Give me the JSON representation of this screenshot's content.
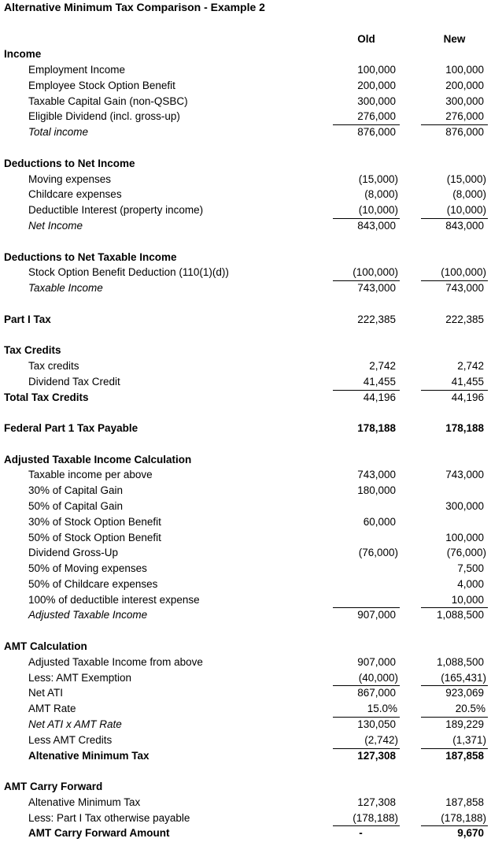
{
  "title": "Alternative Minimum Tax Comparison - Example 2",
  "columns": {
    "old": "Old",
    "new": "New"
  },
  "rows": [
    {
      "label": "Income",
      "indent": 0,
      "bold": true,
      "old": "",
      "new": ""
    },
    {
      "label": "Employment Income",
      "indent": 1,
      "old": "100,000",
      "new": "100,000"
    },
    {
      "label": "Employee Stock Option Benefit",
      "indent": 1,
      "old": "200,000",
      "new": "200,000"
    },
    {
      "label": "Taxable Capital Gain (non-QSBC)",
      "indent": 1,
      "old": "300,000",
      "new": "300,000"
    },
    {
      "label": "Eligible Dividend (incl. gross-up)",
      "indent": 1,
      "old": "276,000",
      "new": "276,000",
      "underline": true
    },
    {
      "label": "Total income",
      "indent": 1,
      "italic": true,
      "old": "876,000",
      "new": "876,000"
    },
    {
      "blank": true
    },
    {
      "label": "Deductions to Net Income",
      "indent": 0,
      "bold": true,
      "old": "",
      "new": ""
    },
    {
      "label": "Moving expenses",
      "indent": 1,
      "old": "(15,000)",
      "new": "(15,000)"
    },
    {
      "label": "Childcare expenses",
      "indent": 1,
      "old": "(8,000)",
      "new": "(8,000)"
    },
    {
      "label": "Deductible Interest (property income)",
      "indent": 1,
      "old": "(10,000)",
      "new": "(10,000)",
      "underline": true
    },
    {
      "label": "Net Income",
      "indent": 1,
      "italic": true,
      "old": "843,000",
      "new": "843,000"
    },
    {
      "blank": true
    },
    {
      "label": "Deductions to Net Taxable Income",
      "indent": 0,
      "bold": true,
      "old": "",
      "new": ""
    },
    {
      "label": "Stock Option Benefit Deduction (110(1)(d))",
      "indent": 1,
      "old": "(100,000)",
      "new": "(100,000)",
      "underline": true
    },
    {
      "label": "Taxable Income",
      "indent": 1,
      "italic": true,
      "old": "743,000",
      "new": "743,000"
    },
    {
      "blank": true
    },
    {
      "label": "Part I Tax",
      "indent": 0,
      "bold": true,
      "old": "222,385",
      "new": "222,385"
    },
    {
      "blank": true
    },
    {
      "label": "Tax Credits",
      "indent": 0,
      "bold": true,
      "old": "",
      "new": ""
    },
    {
      "label": "Tax credits",
      "indent": 1,
      "old": "2,742",
      "new": "2,742"
    },
    {
      "label": "Dividend Tax Credit",
      "indent": 1,
      "old": "41,455",
      "new": "41,455",
      "underline": true
    },
    {
      "label": "Total Tax Credits",
      "indent": 0,
      "bold": true,
      "old": "44,196",
      "new": "44,196"
    },
    {
      "blank": true
    },
    {
      "label": "Federal Part 1 Tax Payable",
      "indent": 0,
      "bold": true,
      "old": "178,188",
      "new": "178,188",
      "values_bold": true
    },
    {
      "blank": true
    },
    {
      "label": "Adjusted Taxable Income Calculation",
      "indent": 0,
      "bold": true,
      "old": "",
      "new": ""
    },
    {
      "label": "Taxable income per above",
      "indent": 1,
      "old": "743,000",
      "new": "743,000"
    },
    {
      "label": "30% of Capital Gain",
      "indent": 1,
      "old": "180,000",
      "new": ""
    },
    {
      "label": "50% of Capital Gain",
      "indent": 1,
      "old": "",
      "new": "300,000"
    },
    {
      "label": "30% of Stock Option Benefit",
      "indent": 1,
      "old": "60,000",
      "new": ""
    },
    {
      "label": "50% of Stock Option Benefit",
      "indent": 1,
      "old": "",
      "new": "100,000"
    },
    {
      "label": "Dividend Gross-Up",
      "indent": 1,
      "old": "(76,000)",
      "new": "(76,000)"
    },
    {
      "label": "50% of Moving expenses",
      "indent": 1,
      "old": "",
      "new": "7,500"
    },
    {
      "label": "50% of Childcare expenses",
      "indent": 1,
      "old": "",
      "new": "4,000"
    },
    {
      "label": "100% of deductible interest expense",
      "indent": 1,
      "old": "",
      "new": "10,000",
      "underline": true
    },
    {
      "label": "Adjusted Taxable Income",
      "indent": 1,
      "italic": true,
      "old": "907,000",
      "new": "1,088,500"
    },
    {
      "blank": true
    },
    {
      "label": "AMT Calculation",
      "indent": 0,
      "bold": true,
      "old": "",
      "new": ""
    },
    {
      "label": "Adjusted Taxable Income from above",
      "indent": 1,
      "old": "907,000",
      "new": "1,088,500"
    },
    {
      "label": "Less: AMT Exemption",
      "indent": 1,
      "old": "(40,000)",
      "new": "(165,431)",
      "underline": true
    },
    {
      "label": "Net ATI",
      "indent": 1,
      "old": "867,000",
      "new": "923,069"
    },
    {
      "label": "AMT Rate",
      "indent": 1,
      "old": "15.0%",
      "new": "20.5%",
      "underline": true
    },
    {
      "label": "Net ATI x AMT Rate",
      "indent": 1,
      "italic": true,
      "old": "130,050",
      "new": "189,229"
    },
    {
      "label": "Less AMT Credits",
      "indent": 1,
      "old": "(2,742)",
      "new": "(1,371)",
      "underline": true
    },
    {
      "label": "Altenative Minimum Tax",
      "indent": 1,
      "bold": true,
      "old": "127,308",
      "new": "187,858",
      "values_bold": true
    },
    {
      "blank": true
    },
    {
      "label": "AMT Carry Forward",
      "indent": 0,
      "bold": true,
      "old": "",
      "new": ""
    },
    {
      "label": "Altenative Minimum Tax",
      "indent": 1,
      "old": "127,308",
      "new": "187,858"
    },
    {
      "label": "Less: Part I Tax otherwise payable",
      "indent": 1,
      "old": "(178,188)",
      "new": "(178,188)",
      "underline": true
    },
    {
      "label": "AMT Carry Forward Amount",
      "indent": 1,
      "bold": true,
      "old": "-",
      "new": "9,670",
      "values_bold": true
    }
  ]
}
